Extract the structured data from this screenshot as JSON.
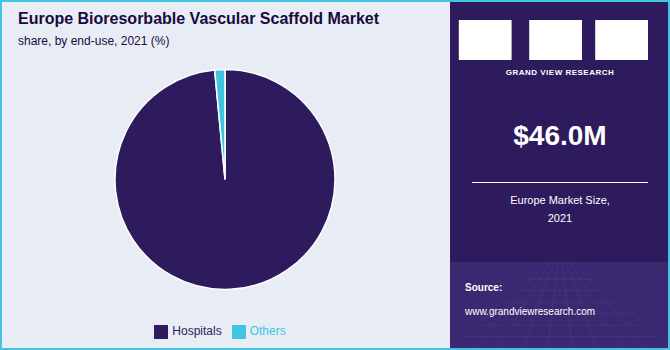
{
  "chart_data": {
    "type": "pie",
    "title": "Europe Bioresorbable Vascular Scaffold Market",
    "subtitle": "share, by end-use, 2021 (%)",
    "categories": [
      "Hospitals",
      "Others"
    ],
    "values": [
      98.5,
      1.5
    ],
    "colors": [
      "#2d1b5e",
      "#40c4e0"
    ],
    "legend": "bottom",
    "annotations": [
      "GRAND VIEW RESEARCH",
      "$46.0M",
      "Europe Market Size,\n2021",
      "Source:",
      "www.grandviewresearch.com"
    ]
  }
}
